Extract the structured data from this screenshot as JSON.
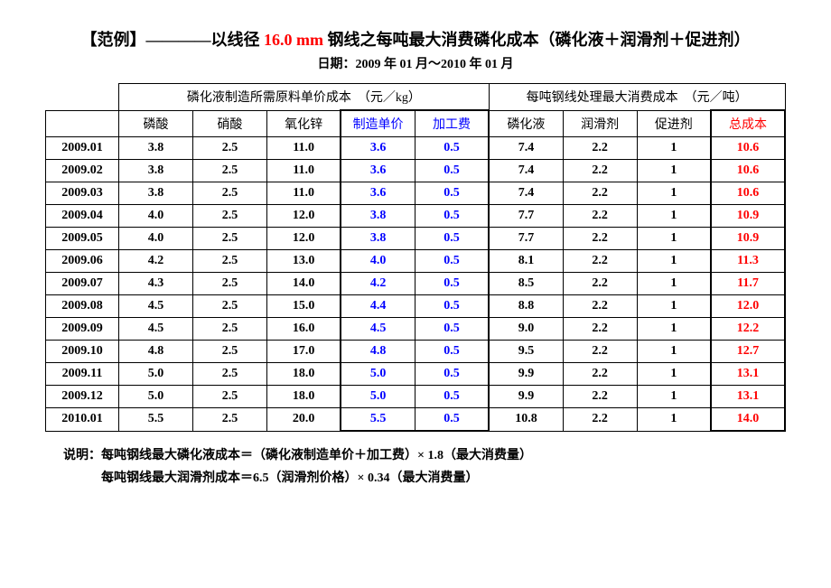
{
  "title": {
    "prefix": "【范例】————以线径 ",
    "highlight": "16.0 mm",
    "suffix": " 钢线之每吨最大消费磷化成本（磷化液＋润滑剂＋促进剂）"
  },
  "subtitle": "日期：2009 年 01 月～2010 年 01 月",
  "group_headers": {
    "g1": "磷化液制造所需原料单价成本　（元／kg）",
    "g2": "每吨钢线处理最大消费成本　（元／吨）"
  },
  "columns": {
    "c1": "磷酸",
    "c2": "硝酸",
    "c3": "氧化锌",
    "c4": "制造单价",
    "c5": "加工费",
    "c6": "磷化液",
    "c7": "润滑剂",
    "c8": "促进剂",
    "c9": "总成本"
  },
  "rows": [
    {
      "date": "2009.01",
      "c1": "3.8",
      "c2": "2.5",
      "c3": "11.0",
      "c4": "3.6",
      "c5": "0.5",
      "c6": "7.4",
      "c7": "2.2",
      "c8": "1",
      "c9": "10.6"
    },
    {
      "date": "2009.02",
      "c1": "3.8",
      "c2": "2.5",
      "c3": "11.0",
      "c4": "3.6",
      "c5": "0.5",
      "c6": "7.4",
      "c7": "2.2",
      "c8": "1",
      "c9": "10.6"
    },
    {
      "date": "2009.03",
      "c1": "3.8",
      "c2": "2.5",
      "c3": "11.0",
      "c4": "3.6",
      "c5": "0.5",
      "c6": "7.4",
      "c7": "2.2",
      "c8": "1",
      "c9": "10.6"
    },
    {
      "date": "2009.04",
      "c1": "4.0",
      "c2": "2.5",
      "c3": "12.0",
      "c4": "3.8",
      "c5": "0.5",
      "c6": "7.7",
      "c7": "2.2",
      "c8": "1",
      "c9": "10.9"
    },
    {
      "date": "2009.05",
      "c1": "4.0",
      "c2": "2.5",
      "c3": "12.0",
      "c4": "3.8",
      "c5": "0.5",
      "c6": "7.7",
      "c7": "2.2",
      "c8": "1",
      "c9": "10.9"
    },
    {
      "date": "2009.06",
      "c1": "4.2",
      "c2": "2.5",
      "c3": "13.0",
      "c4": "4.0",
      "c5": "0.5",
      "c6": "8.1",
      "c7": "2.2",
      "c8": "1",
      "c9": "11.3"
    },
    {
      "date": "2009.07",
      "c1": "4.3",
      "c2": "2.5",
      "c3": "14.0",
      "c4": "4.2",
      "c5": "0.5",
      "c6": "8.5",
      "c7": "2.2",
      "c8": "1",
      "c9": "11.7"
    },
    {
      "date": "2009.08",
      "c1": "4.5",
      "c2": "2.5",
      "c3": "15.0",
      "c4": "4.4",
      "c5": "0.5",
      "c6": "8.8",
      "c7": "2.2",
      "c8": "1",
      "c9": "12.0"
    },
    {
      "date": "2009.09",
      "c1": "4.5",
      "c2": "2.5",
      "c3": "16.0",
      "c4": "4.5",
      "c5": "0.5",
      "c6": "9.0",
      "c7": "2.2",
      "c8": "1",
      "c9": "12.2"
    },
    {
      "date": "2009.10",
      "c1": "4.8",
      "c2": "2.5",
      "c3": "17.0",
      "c4": "4.8",
      "c5": "0.5",
      "c6": "9.5",
      "c7": "2.2",
      "c8": "1",
      "c9": "12.7"
    },
    {
      "date": "2009.11",
      "c1": "5.0",
      "c2": "2.5",
      "c3": "18.0",
      "c4": "5.0",
      "c5": "0.5",
      "c6": "9.9",
      "c7": "2.2",
      "c8": "1",
      "c9": "13.1"
    },
    {
      "date": "2009.12",
      "c1": "5.0",
      "c2": "2.5",
      "c3": "18.0",
      "c4": "5.0",
      "c5": "0.5",
      "c6": "9.9",
      "c7": "2.2",
      "c8": "1",
      "c9": "13.1"
    },
    {
      "date": "2010.01",
      "c1": "5.5",
      "c2": "2.5",
      "c3": "20.0",
      "c4": "5.5",
      "c5": "0.5",
      "c6": "10.8",
      "c7": "2.2",
      "c8": "1",
      "c9": "14.0"
    }
  ],
  "notes": {
    "label": "说明：",
    "line1": "每吨钢线最大磷化液成本＝（磷化液制造单价＋加工费）× 1.8（最大消费量）",
    "line2": "每吨钢线最大润滑剂成本＝6.5（润滑剂价格）× 0.34（最大消费量）"
  },
  "style": {
    "blue": "#0000ff",
    "red": "#ff0000",
    "black": "#000000",
    "bg": "#ffffff"
  }
}
